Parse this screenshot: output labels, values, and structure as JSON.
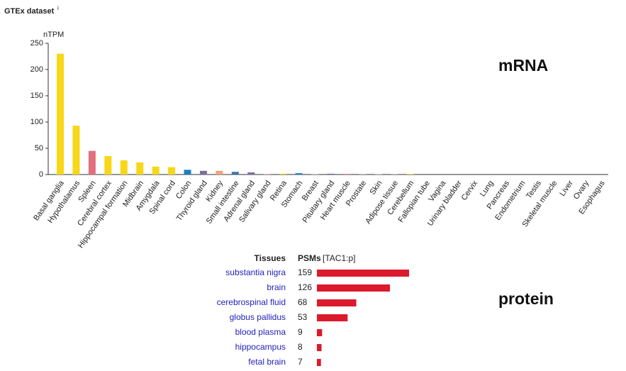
{
  "header": {
    "title": "GTEx dataset",
    "info": "i"
  },
  "chart_data": [
    {
      "type": "bar",
      "ylabel": "nTPM",
      "annotation": "mRNA",
      "categories": [
        "Basal ganglia",
        "Hypothalamus",
        "Spleen",
        "Cerebral cortex",
        "Hippocampal formation",
        "Midbrain",
        "Amygdala",
        "Spinal cord",
        "Colon",
        "Thyroid gland",
        "Kidney",
        "Small intestine",
        "Adrenal gland",
        "Salivary gland",
        "Retina",
        "Stomach",
        "Breast",
        "Pituitary gland",
        "Heart muscle",
        "Prostate",
        "Skin",
        "Adipose tissue",
        "Cerebellum",
        "Fallopian tube",
        "Vagina",
        "Urinary bladder",
        "Cervix",
        "Lung",
        "Pancreas",
        "Endometrium",
        "Testis",
        "Skeletal muscle",
        "Liver",
        "Ovary",
        "Esophagus"
      ],
      "values": [
        230,
        93,
        45,
        35,
        27,
        23,
        15,
        14,
        9,
        7,
        7,
        5,
        4,
        1.5,
        1.5,
        2.5,
        0.5,
        1.5,
        1,
        0.5,
        0.5,
        0.5,
        1,
        0,
        0,
        0,
        0,
        0,
        0,
        0,
        0,
        0,
        0,
        0,
        0
      ],
      "colors": [
        "#f7d717",
        "#f7d717",
        "#e0707e",
        "#f7d717",
        "#f7d717",
        "#f7d717",
        "#f7d717",
        "#f7d717",
        "#1a80bf",
        "#7f6e9c",
        "#f2a478",
        "#3d72a8",
        "#7f6e9c",
        "#f4c2c2",
        "#f7d717",
        "#1a80bf",
        "#f4b3c6",
        "#7f6e9c",
        "#d4707a",
        "#8fb8d8",
        "#e8c0a8",
        "#b0b0b0",
        "#f7d717",
        "#e0a0b0",
        "#e0a0b0",
        "#b0b0b0",
        "#e0a0b0",
        "#8fb8d8",
        "#a0c0a0",
        "#e0a0b0",
        "#8fb8d8",
        "#d4707a",
        "#a0c0a0",
        "#e0a0b0",
        "#1a80bf"
      ],
      "ylim": [
        0,
        250
      ],
      "yticks": [
        0,
        50,
        100,
        150,
        200,
        250
      ]
    },
    {
      "type": "hbar",
      "annotation": "protein",
      "category_header": "Tissues",
      "value_header": "PSMs",
      "value_header_note": "[TAC1:p]",
      "categories": [
        "substantia nigra",
        "brain",
        "cerebrospinal fluid",
        "globus pallidus",
        "blood plasma",
        "hippocampus",
        "fetal brain"
      ],
      "values": [
        159,
        126,
        68,
        53,
        9,
        8,
        7
      ],
      "color": "#dc1a2c"
    }
  ]
}
